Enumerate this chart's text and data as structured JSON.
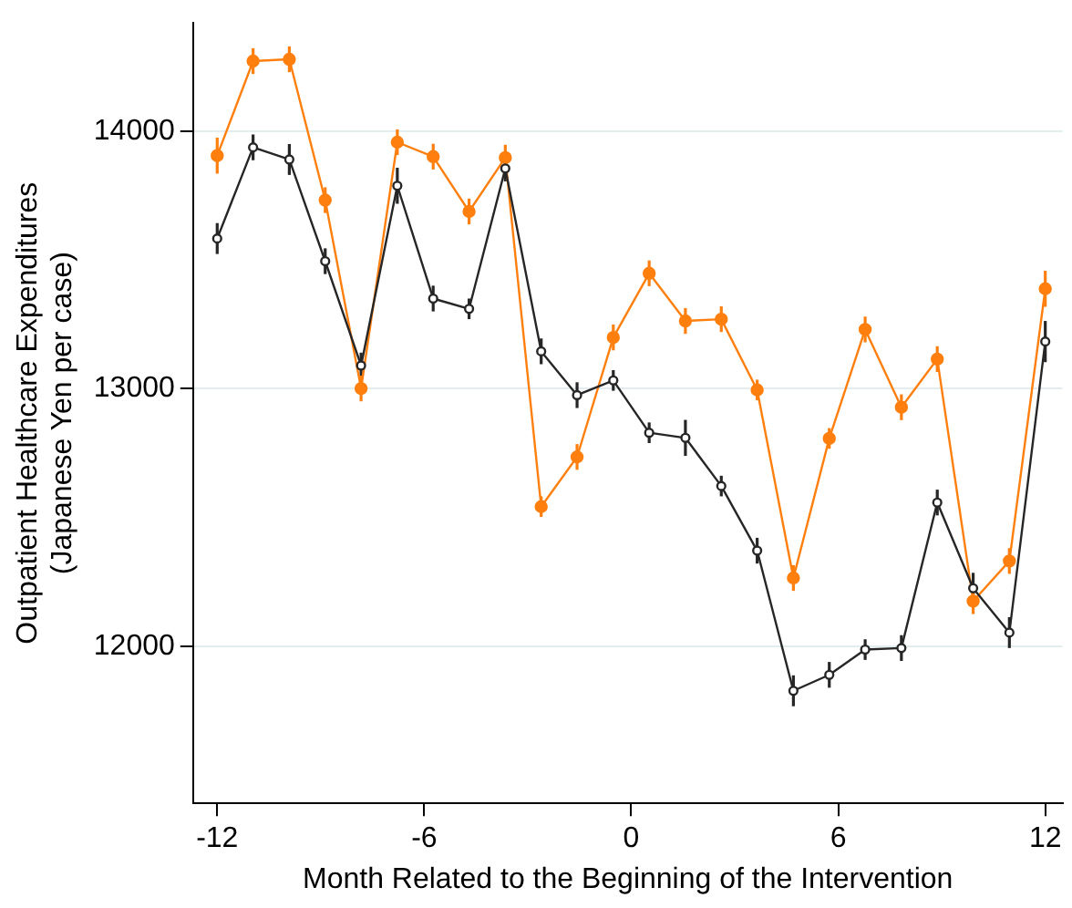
{
  "chart_data": {
    "type": "line",
    "xlabel": "Month Related to the Beginning of the Intervention",
    "ylabel": "Outpatient Healthcare Expenditures\n(Japanese Yen per case)",
    "x": [
      -12,
      -10.96,
      -9.91,
      -8.87,
      -7.83,
      -6.78,
      -5.74,
      -4.7,
      -3.65,
      -2.61,
      -1.57,
      -0.52,
      0.52,
      1.57,
      2.61,
      3.65,
      4.7,
      5.74,
      6.78,
      7.83,
      8.87,
      9.91,
      10.96,
      12
    ],
    "xlim": [
      -12.7,
      12.5
    ],
    "xticks": [
      -12,
      -6,
      0,
      6,
      12
    ],
    "ylim": [
      11390,
      14420
    ],
    "yticks": [
      12000,
      13000,
      14000
    ],
    "grid": "y",
    "marker": "circle",
    "line_style": "solid",
    "series": [
      {
        "color": "#262626",
        "values": [
          13583,
          13937,
          13890,
          13495,
          13090,
          13788,
          13350,
          13310,
          13855,
          13145,
          12975,
          13032,
          12829,
          12809,
          12622,
          12371,
          11827,
          11889,
          11987,
          11993,
          12558,
          12225,
          12053,
          13183
        ],
        "errors": [
          60,
          50,
          60,
          50,
          50,
          70,
          50,
          40,
          50,
          50,
          50,
          40,
          40,
          70,
          40,
          50,
          60,
          50,
          40,
          50,
          50,
          60,
          60,
          80
        ]
      },
      {
        "color": "#ff7f0e",
        "values": [
          13905,
          14272,
          14279,
          13732,
          13001,
          13957,
          13901,
          13688,
          13897,
          12542,
          12735,
          13199,
          13448,
          13263,
          13270,
          12995,
          12265,
          12807,
          13230,
          12928,
          13115,
          12175,
          12331,
          13388
        ],
        "errors": [
          70,
          50,
          50,
          50,
          50,
          50,
          50,
          50,
          50,
          40,
          50,
          50,
          50,
          50,
          50,
          40,
          50,
          40,
          50,
          50,
          50,
          50,
          50,
          70
        ]
      }
    ]
  }
}
